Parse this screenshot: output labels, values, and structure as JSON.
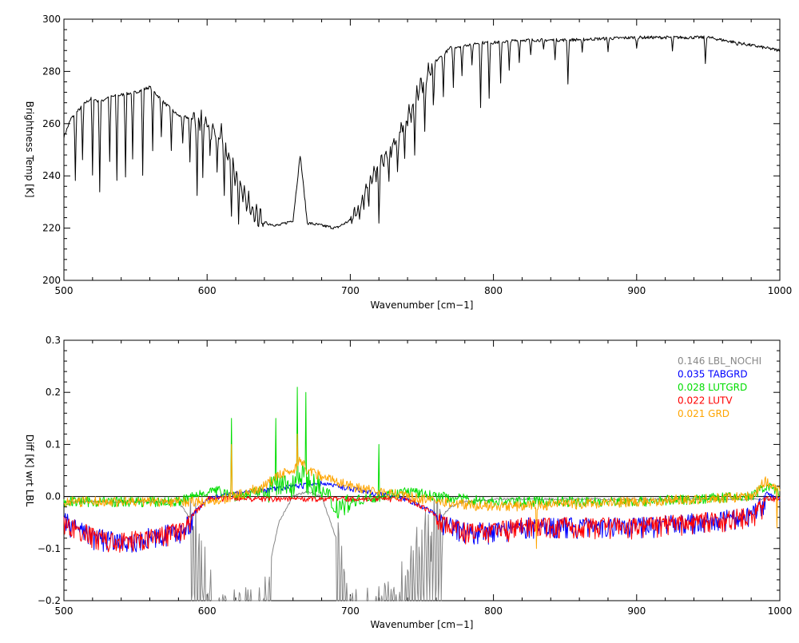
{
  "chart_data": [
    {
      "type": "line",
      "xlabel": "Wavenumber [cm−1]",
      "ylabel": "Brightness Temp [K]",
      "xlim": [
        500,
        1000
      ],
      "ylim": [
        200,
        300
      ],
      "xticks": [
        500,
        600,
        700,
        800,
        900,
        1000
      ],
      "yticks": [
        200,
        220,
        240,
        260,
        280,
        300
      ],
      "grid": false,
      "series": [
        {
          "color": "#000000",
          "x": [
            500,
            505,
            510,
            515,
            520,
            525,
            530,
            540,
            550,
            560,
            570,
            580,
            590,
            600,
            610,
            615,
            620,
            625,
            630,
            640,
            650,
            660,
            665,
            670,
            680,
            690,
            700,
            705,
            710,
            715,
            720,
            725,
            730,
            740,
            750,
            760,
            770,
            780,
            790,
            800,
            820,
            850,
            900,
            950,
            1000
          ],
          "y": [
            255,
            262,
            265,
            268,
            270,
            268,
            270,
            271,
            272,
            274,
            268,
            263,
            262,
            260,
            255,
            247,
            240,
            234,
            228,
            222,
            221,
            223,
            248,
            222,
            221,
            220,
            223,
            226,
            232,
            240,
            243,
            248,
            252,
            262,
            275,
            284,
            289,
            290,
            291,
            291,
            292,
            292,
            293,
            293,
            288
          ],
          "dips": [
            [
              508,
              238
            ],
            [
              513,
              246
            ],
            [
              520,
              240
            ],
            [
              525,
              234
            ],
            [
              532,
              245
            ],
            [
              537,
              238
            ],
            [
              543,
              240
            ],
            [
              548,
              246
            ],
            [
              555,
              240
            ],
            [
              562,
              250
            ],
            [
              568,
              255
            ],
            [
              575,
              250
            ],
            [
              583,
              252
            ],
            [
              588,
              245
            ],
            [
              593,
              232
            ],
            [
              597,
              240
            ],
            [
              602,
              246
            ],
            [
              607,
              240
            ],
            [
              612,
              232
            ],
            [
              617,
              225
            ],
            [
              622,
              226
            ],
            [
              706,
              225
            ],
            [
              713,
              228
            ],
            [
              720,
              222
            ],
            [
              727,
              236
            ],
            [
              733,
              238
            ],
            [
              738,
              246
            ],
            [
              745,
              250
            ],
            [
              752,
              255
            ],
            [
              758,
              266
            ],
            [
              765,
              270
            ],
            [
              772,
              274
            ],
            [
              778,
              278
            ],
            [
              785,
              282
            ],
            [
              791,
              266
            ],
            [
              797,
              270
            ],
            [
              805,
              275
            ],
            [
              811,
              280
            ],
            [
              818,
              284
            ],
            [
              826,
              286
            ],
            [
              835,
              288
            ],
            [
              843,
              285
            ],
            [
              852,
              275
            ],
            [
              862,
              287
            ],
            [
              880,
              288
            ],
            [
              900,
              289
            ],
            [
              925,
              288
            ],
            [
              948,
              283
            ],
            [
              970,
              290
            ]
          ]
        }
      ]
    },
    {
      "type": "line",
      "xlabel": "Wavenumber [cm−1]",
      "ylabel": "Diff [K] wrt LBL",
      "xlim": [
        500,
        1000
      ],
      "ylim": [
        -0.2,
        0.3
      ],
      "xticks": [
        500,
        600,
        700,
        800,
        900,
        1000
      ],
      "yticks": [
        -0.2,
        -0.1,
        0.0,
        0.1,
        0.2,
        0.3
      ],
      "ytick_labels": [
        "−0.2",
        "−0.1",
        "0.0",
        "0.1",
        "0.2",
        "0.3"
      ],
      "grid": false,
      "legend_position": "top-right",
      "series": [
        {
          "name": "0.146 LBL_NOCHI",
          "color": "#888888",
          "x": [
            500,
            580,
            590,
            600,
            610,
            620,
            630,
            640,
            650,
            660,
            670,
            680,
            690,
            700,
            710,
            720,
            730,
            740,
            750,
            760,
            770,
            780,
            800,
            1000
          ],
          "y": [
            -0.01,
            -0.01,
            -0.05,
            -0.15,
            -0.22,
            -0.22,
            -0.22,
            -0.18,
            -0.05,
            0.0,
            0.01,
            0.0,
            -0.08,
            -0.22,
            -0.22,
            -0.22,
            -0.2,
            -0.15,
            -0.1,
            -0.05,
            -0.02,
            -0.01,
            -0.005,
            -0.005
          ]
        },
        {
          "name": "0.035 TABGRD",
          "color": "#0000ff",
          "x": [
            500,
            520,
            540,
            560,
            580,
            590,
            600,
            620,
            650,
            680,
            700,
            720,
            740,
            760,
            780,
            800,
            820,
            850,
            900,
            950,
            980,
            990,
            1000
          ],
          "y": [
            -0.03,
            -0.06,
            -0.07,
            -0.06,
            -0.05,
            -0.03,
            0.0,
            0.01,
            0.02,
            0.03,
            0.02,
            0.01,
            0.0,
            -0.03,
            -0.05,
            -0.05,
            -0.04,
            -0.04,
            -0.04,
            -0.03,
            -0.02,
            0.01,
            0.0
          ]
        },
        {
          "name": "0.028 LUTGRD",
          "color": "#00dd00",
          "x": [
            500,
            580,
            590,
            600,
            615,
            620,
            640,
            650,
            660,
            665,
            670,
            680,
            690,
            700,
            720,
            740,
            760,
            800,
            900,
            980,
            990,
            1000
          ],
          "y": [
            -0.01,
            -0.01,
            0.0,
            0.01,
            0.01,
            0.0,
            0.01,
            0.02,
            0.02,
            0.05,
            0.03,
            0.01,
            -0.02,
            -0.01,
            0.0,
            0.01,
            0.0,
            -0.01,
            -0.01,
            0.0,
            0.02,
            0.01
          ]
        },
        {
          "name": "0.022 LUTV",
          "color": "#ff0000",
          "x": [
            500,
            520,
            540,
            560,
            580,
            590,
            600,
            620,
            650,
            680,
            700,
            720,
            740,
            760,
            780,
            800,
            820,
            850,
            900,
            950,
            980,
            990,
            1000
          ],
          "y": [
            -0.03,
            -0.06,
            -0.07,
            -0.06,
            -0.05,
            -0.03,
            0.0,
            0.0,
            0.0,
            0.0,
            0.0,
            0.0,
            0.0,
            -0.03,
            -0.05,
            -0.05,
            -0.04,
            -0.04,
            -0.04,
            -0.03,
            -0.02,
            0.0,
            0.0
          ]
        },
        {
          "name": "0.021 GRD",
          "color": "#ffa500",
          "x": [
            500,
            580,
            600,
            620,
            640,
            650,
            660,
            665,
            670,
            680,
            700,
            720,
            740,
            760,
            800,
            900,
            980,
            990,
            1000
          ],
          "y": [
            -0.01,
            -0.01,
            -0.01,
            0.0,
            0.02,
            0.04,
            0.05,
            0.07,
            0.05,
            0.04,
            0.02,
            0.01,
            0.0,
            -0.01,
            -0.02,
            -0.01,
            0.0,
            0.03,
            0.01
          ]
        }
      ],
      "spikes": [
        {
          "series": 2,
          "x": 617,
          "y": 0.15
        },
        {
          "series": 2,
          "x": 648,
          "y": 0.15
        },
        {
          "series": 2,
          "x": 663,
          "y": 0.21
        },
        {
          "series": 2,
          "x": 669,
          "y": 0.2
        },
        {
          "series": 2,
          "x": 720,
          "y": 0.1
        },
        {
          "series": 4,
          "x": 617,
          "y": 0.1
        },
        {
          "series": 4,
          "x": 663,
          "y": 0.12
        },
        {
          "series": 4,
          "x": 830,
          "y": -0.1
        },
        {
          "series": 4,
          "x": 998,
          "y": -0.06
        }
      ]
    }
  ]
}
